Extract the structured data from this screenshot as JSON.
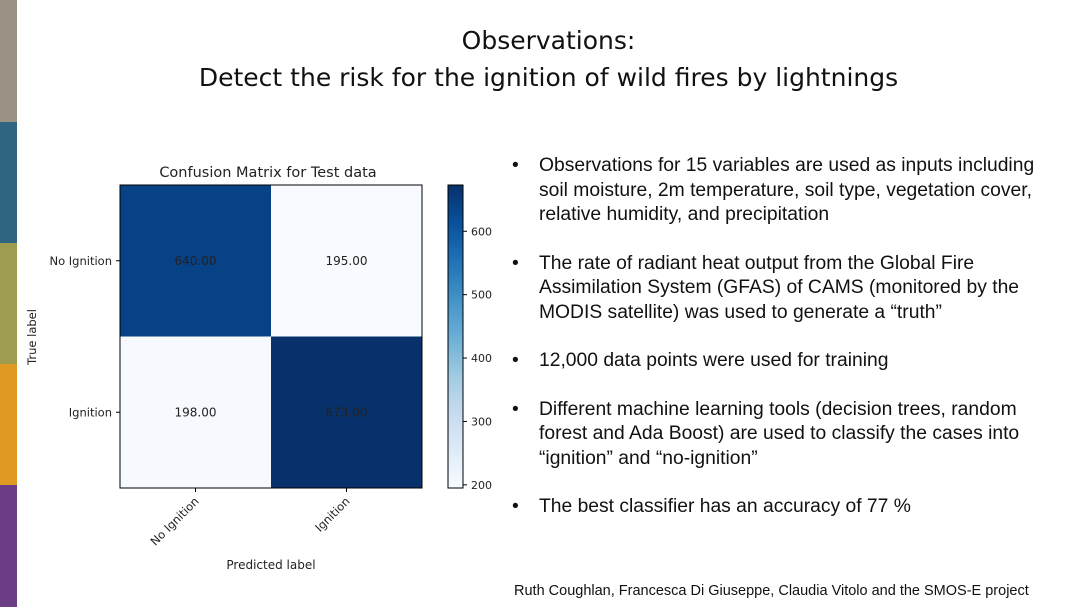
{
  "colors": {
    "strips": [
      "#9a9385",
      "#2f6580",
      "#9e9d4f",
      "#e09a22",
      "#6c3c86"
    ]
  },
  "title": {
    "line1": "Observations:",
    "line2": "Detect the risk for the ignition of wild fires by lightnings"
  },
  "chart_data": {
    "type": "heatmap",
    "title": "Confusion Matrix for Test data",
    "xlabel": "Predicted label",
    "ylabel": "True label",
    "x_categories": [
      "No Ignition",
      "Ignition"
    ],
    "y_categories": [
      "No Ignition",
      "Ignition"
    ],
    "values": [
      [
        640.0,
        195.0
      ],
      [
        198.0,
        673.0
      ]
    ],
    "cell_labels": [
      [
        "640.00",
        "195.00"
      ],
      [
        "198.00",
        "673.00"
      ]
    ],
    "colorbar": {
      "ticks": [
        200,
        300,
        400,
        500,
        600
      ],
      "range": [
        195,
        673
      ],
      "colormap": "Blues"
    }
  },
  "bullets": [
    "Observations for 15 variables are used as inputs including soil moisture, 2m temperature, soil type, vegetation cover, relative humidity, and precipitation",
    "The rate of radiant heat output from the Global Fire Assimilation System (GFAS) of CAMS (monitored by the MODIS satellite) was used to generate a “truth”",
    "12,000 data points were used for training",
    "Different machine learning tools (decision trees, random forest and Ada Boost) are used to classify the cases into “ignition” and “no-ignition”",
    "The best classifier has an accuracy of 77 %"
  ],
  "bullet_symbol": "•",
  "credit": "Ruth Coughlan, Francesca Di Giuseppe, Claudia Vitolo and the SMOS-E project"
}
